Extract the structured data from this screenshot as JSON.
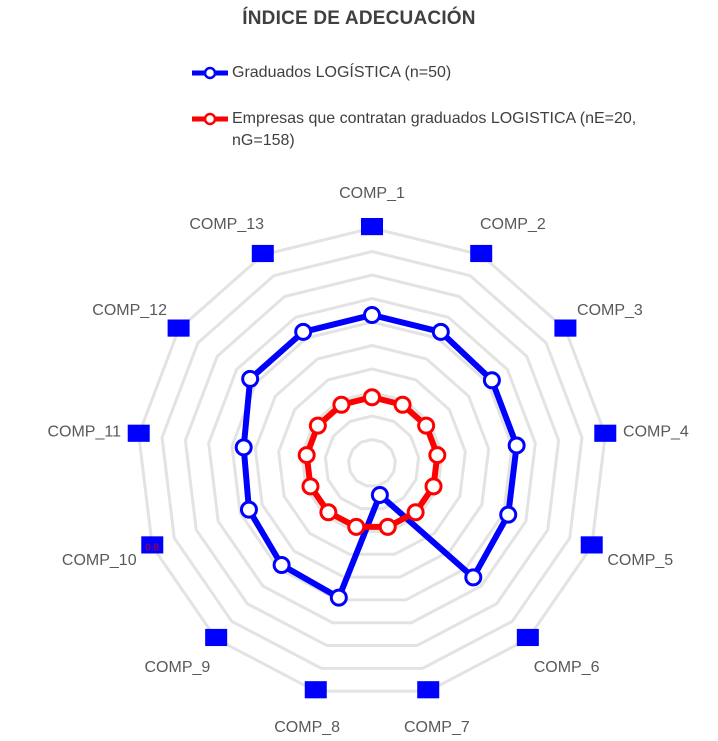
{
  "chart_data": {
    "type": "radar",
    "title": "ÍNDICE DE ADECUACIÓN",
    "categories": [
      "COMP_1",
      "COMP_2",
      "COMP_3",
      "COMP_4",
      "COMP_5",
      "COMP_6",
      "COMP_7",
      "COMP_8",
      "COMP_9",
      "COMP_10",
      "COMP_11",
      "COMP_12",
      "COMP_13"
    ],
    "rlim": [
      0,
      1
    ],
    "grid_levels": 10,
    "grid": true,
    "legend_position": "top",
    "series": [
      {
        "name": "Graduados LOGÍSTICA (n=50)",
        "color": "#0000ff",
        "values": [
          0.63,
          0.63,
          0.62,
          0.62,
          0.62,
          0.65,
          0.14,
          0.59,
          0.58,
          0.56,
          0.55,
          0.63,
          0.63
        ]
      },
      {
        "name": "Empresas que contratan graduados LOGISTICA (nE=20, nG=158)",
        "color": "#ff0000",
        "values": [
          0.28,
          0.28,
          0.28,
          0.28,
          0.28,
          0.28,
          0.28,
          0.28,
          0.28,
          0.28,
          0.28,
          0.28,
          0.28
        ]
      }
    ],
    "markers": {
      "color": "#0000ff",
      "values": [
        1,
        1,
        1,
        1,
        1,
        1,
        1,
        1,
        1,
        1,
        1,
        1,
        1
      ]
    },
    "data_labels": [
      {
        "category": "COMP_10",
        "text": "0.8"
      }
    ]
  }
}
